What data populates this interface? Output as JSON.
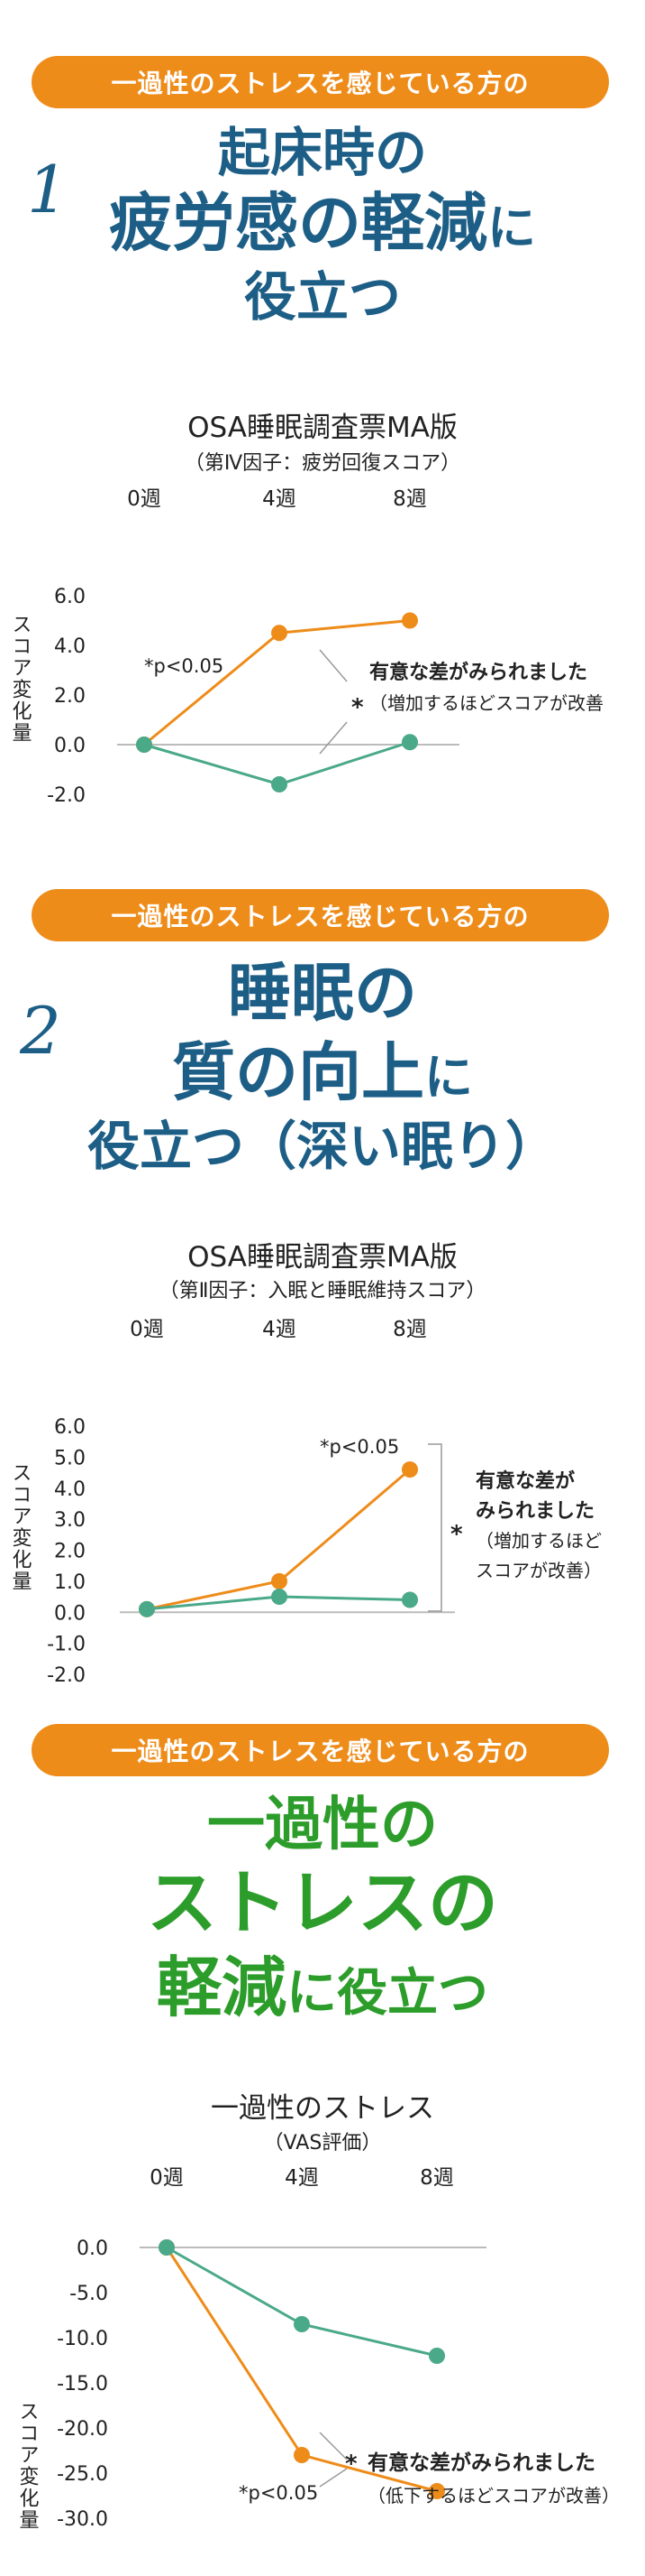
{
  "colors": {
    "orange": "#ee8c1a",
    "green": "#4aa988",
    "blue": "#1d5e86",
    "headline_green": "#2c9d2a",
    "axis": "#bbbbbb"
  },
  "sections": [
    {
      "pill": "一過性のストレスを感じている方の",
      "number": "1",
      "headline": [
        "起床時の",
        "疲労感の軽減",
        "に",
        "役立つ"
      ],
      "chart_title": "OSA睡眠調査票MA版",
      "chart_subtitle": "（第Ⅳ因子：疲労回復スコア）",
      "ylabel": "スコア変化量",
      "pval": "*p<0.05",
      "sig_star": "*",
      "sig_lines": [
        "有意な差がみられました",
        "（増加するほどスコアが改善"
      ]
    },
    {
      "pill": "一過性のストレスを感じている方の",
      "number": "2",
      "headline": [
        "睡眠の",
        "質の向上",
        "に",
        "役立つ（深い眠り）"
      ],
      "chart_title": "OSA睡眠調査票MA版",
      "chart_subtitle": "（第Ⅱ因子：入眠と睡眠維持スコア）",
      "ylabel": "スコア変化量",
      "pval": "*p<0.05",
      "sig_star": "*",
      "sig_lines": [
        "有意な差が",
        "みられました",
        "（増加するほど",
        "スコアが改善）"
      ]
    },
    {
      "pill": "一過性のストレスを感じている方の",
      "headline": [
        "一過性の",
        "ストレスの",
        "軽減",
        "に役立つ"
      ],
      "chart_title": "一過性のストレス",
      "chart_subtitle": "（VAS評価）",
      "ylabel": "スコア変化量",
      "pval": "*p<0.05",
      "sig_star": "*",
      "sig_lines": [
        "有意な差がみられました",
        "（低下するほどスコアが改善）"
      ]
    }
  ],
  "chart_data": [
    {
      "type": "line",
      "title": "OSA睡眠調査票MA版",
      "subtitle": "（第Ⅳ因子：疲労回復スコア）",
      "categories": [
        "0週",
        "4週",
        "8週"
      ],
      "ylabel": "スコア変化量",
      "yticks": [
        "6.0",
        "4.0",
        "2.0",
        "0.0",
        "-2.0"
      ],
      "ylim": [
        -2,
        6
      ],
      "series": [
        {
          "name": "orange",
          "color": "#ee8c1a",
          "values": [
            0,
            4.5,
            5.0
          ]
        },
        {
          "name": "green",
          "color": "#4aa988",
          "values": [
            0,
            -1.6,
            0.1
          ]
        }
      ],
      "annotation": "*p<0.05"
    },
    {
      "type": "line",
      "title": "OSA睡眠調査票MA版",
      "subtitle": "（第Ⅱ因子：入眠と睡眠維持スコア）",
      "categories": [
        "0週",
        "4週",
        "8週"
      ],
      "ylabel": "スコア変化量",
      "yticks": [
        "6.0",
        "5.0",
        "4.0",
        "3.0",
        "2.0",
        "1.0",
        "0.0",
        "-1.0",
        "-2.0"
      ],
      "ylim": [
        -2,
        6
      ],
      "series": [
        {
          "name": "orange",
          "color": "#ee8c1a",
          "values": [
            0.1,
            1.0,
            4.6
          ]
        },
        {
          "name": "green",
          "color": "#4aa988",
          "values": [
            0.1,
            0.5,
            0.4
          ]
        }
      ],
      "annotation": "*p<0.05"
    },
    {
      "type": "line",
      "title": "一過性のストレス",
      "subtitle": "（VAS評価）",
      "categories": [
        "0週",
        "4週",
        "8週"
      ],
      "ylabel": "スコア変化量",
      "yticks": [
        "0.0",
        "-5.0",
        "-10.0",
        "-15.0",
        "-20.0",
        "-25.0",
        "-30.0"
      ],
      "ylim": [
        -30,
        0
      ],
      "series": [
        {
          "name": "orange",
          "color": "#ee8c1a",
          "values": [
            0,
            -23,
            -27
          ]
        },
        {
          "name": "green",
          "color": "#4aa988",
          "values": [
            0,
            -8.5,
            -12
          ]
        }
      ],
      "annotation": "*p<0.05"
    }
  ]
}
